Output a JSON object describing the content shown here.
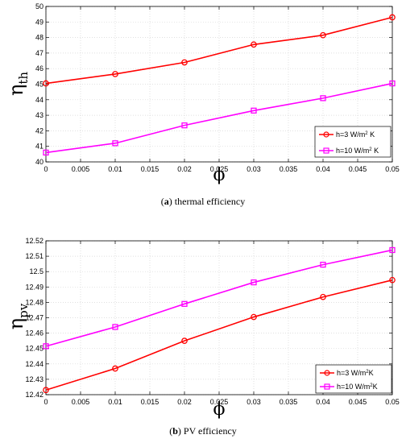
{
  "chart_data": [
    {
      "type": "line",
      "ylabel_main": "η",
      "ylabel_sub": "th",
      "xlabel": "ϕ",
      "caption_letter": "a",
      "caption_text": " thermal efficiency",
      "xlim": [
        0,
        0.05
      ],
      "ylim": [
        40,
        50
      ],
      "x_ticks": [
        "0",
        "0.005",
        "0.01",
        "0.015",
        "0.02",
        "0.025",
        "0.03",
        "0.035",
        "0.04",
        "0.045",
        "0.05"
      ],
      "y_ticks": [
        "40",
        "41",
        "42",
        "43",
        "44",
        "45",
        "46",
        "47",
        "48",
        "49",
        "50"
      ],
      "x": [
        0,
        0.01,
        0.02,
        0.03,
        0.04,
        0.05
      ],
      "grid": true,
      "legend_position": "lower-right",
      "series": [
        {
          "name": "h=3 W/m² K",
          "label_main": "h=3 W/m",
          "label_sup": "2",
          "label_tail": " K",
          "color": "#ff0000",
          "marker": "circle",
          "values": [
            45.05,
            45.65,
            46.4,
            47.55,
            48.15,
            49.3
          ]
        },
        {
          "name": "h=10 W/m² K",
          "label_main": "h=10 W/m",
          "label_sup": "2",
          "label_tail": " K",
          "color": "#ff00ff",
          "marker": "square",
          "values": [
            40.6,
            41.2,
            42.35,
            43.3,
            44.1,
            45.05
          ]
        }
      ]
    },
    {
      "type": "line",
      "ylabel_main": "η",
      "ylabel_sub": "pv",
      "xlabel": "ϕ",
      "caption_letter": "b",
      "caption_text": " PV efficiency",
      "xlim": [
        0,
        0.05
      ],
      "ylim": [
        12.42,
        12.52
      ],
      "x_ticks": [
        "0",
        "0.005",
        "0.01",
        "0.015",
        "0.02",
        "0.025",
        "0.03",
        "0.035",
        "0.04",
        "0.045",
        "0.05"
      ],
      "y_ticks": [
        "12.42",
        "12.43",
        "12.44",
        "12.45",
        "12.46",
        "12.47",
        "12.48",
        "12.49",
        "12.5",
        "12.51",
        "12.52"
      ],
      "x": [
        0,
        0.01,
        0.02,
        0.03,
        0.04,
        0.05
      ],
      "grid": true,
      "legend_position": "lower-right",
      "series": [
        {
          "name": "h=3 W/m²K",
          "label_main": "h=3 W/m",
          "label_sup": "2",
          "label_tail": "K",
          "color": "#ff0000",
          "marker": "circle",
          "values": [
            12.423,
            12.437,
            12.455,
            12.4705,
            12.4835,
            12.4945
          ]
        },
        {
          "name": "h=10 W/m²K",
          "label_main": "h=10 W/m",
          "label_sup": "2",
          "label_tail": "K",
          "color": "#ff00ff",
          "marker": "square",
          "values": [
            12.4515,
            12.464,
            12.479,
            12.493,
            12.5045,
            12.514
          ]
        }
      ]
    }
  ]
}
